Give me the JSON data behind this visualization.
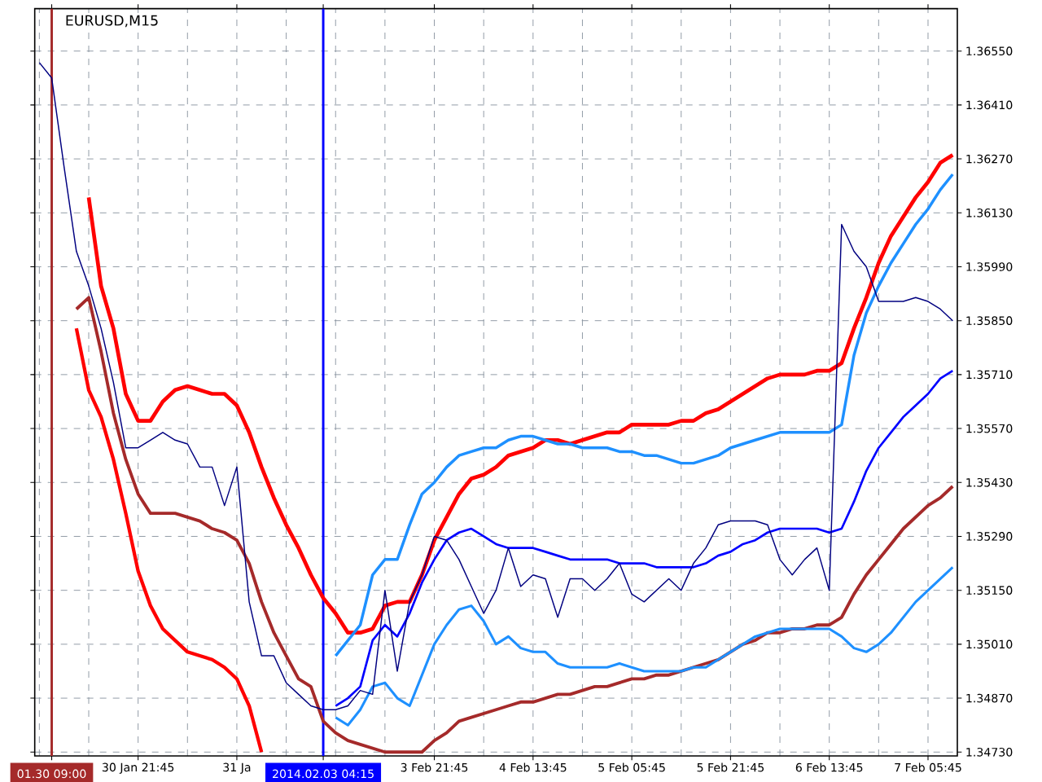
{
  "chart_data": {
    "type": "line",
    "title": "EURUSD,M15",
    "categories": [
      null,
      "01.30 09:00",
      null,
      null,
      null,
      null,
      null,
      null,
      "30 Jan 21:45",
      null,
      null,
      null,
      null,
      null,
      null,
      null,
      "31 Ja",
      null,
      null,
      null,
      null,
      null,
      null,
      "2014.02.03 04:15",
      null,
      null,
      null,
      null,
      null,
      null,
      null,
      null,
      "3 Feb 21:45",
      null,
      null,
      null,
      null,
      null,
      null,
      null,
      "4 Feb 13:45",
      null,
      null,
      null,
      null,
      null,
      null,
      null,
      "5 Feb 05:45",
      null,
      null,
      null,
      null,
      null,
      null,
      null,
      "5 Feb 21:45",
      null,
      null,
      null,
      null,
      null,
      null,
      null,
      "6 Feb 13:45",
      null,
      null,
      null,
      null,
      null,
      null,
      null,
      "7 Feb 05:45",
      null,
      null
    ],
    "series": [
      {
        "color": "#ff0000",
        "values": [
          null,
          null,
          null,
          null,
          1.3617,
          1.3594,
          1.3583,
          1.3566,
          1.3559,
          1.3559,
          1.3564,
          1.3567,
          1.3568,
          1.3567,
          1.3566,
          1.3566,
          1.3563,
          1.3556,
          1.3547,
          1.3539,
          1.3532,
          1.3526,
          1.3519,
          1.3513,
          1.3509,
          1.3504,
          1.3504,
          1.3505,
          1.3511,
          1.3512,
          1.3512,
          1.3519,
          1.3528,
          1.3534,
          1.354,
          1.3544,
          1.3545,
          1.3547,
          1.355,
          1.3551,
          1.3552,
          1.3554,
          1.3554,
          1.3553,
          1.3554,
          1.3555,
          1.3556,
          1.3556,
          1.3558,
          1.3558,
          1.3558,
          1.3558,
          1.3559,
          1.3559,
          1.3561,
          1.3562,
          1.3564,
          1.3566,
          1.3568,
          1.357,
          1.3571,
          1.3571,
          1.3571,
          1.3572,
          1.3572,
          1.3574,
          1.3583,
          1.3591,
          1.36,
          1.3607,
          1.3612,
          1.3617,
          1.3621,
          1.3626,
          1.3628
        ]
      },
      {
        "color": "#ff0000",
        "values": [
          null,
          null,
          null,
          1.3583,
          1.3567,
          1.356,
          1.3549,
          1.3535,
          1.352,
          1.3511,
          1.3505,
          1.3502,
          1.3499,
          1.3498,
          1.3497,
          1.3495,
          1.3492,
          1.3485,
          1.3473,
          null,
          null,
          null,
          null,
          null,
          null,
          null,
          null,
          null,
          null,
          null,
          null,
          null,
          null,
          null,
          null,
          null,
          null,
          null,
          null,
          null,
          null,
          null,
          null,
          null,
          null,
          null,
          null,
          null,
          null,
          null,
          null,
          null,
          null,
          null,
          null,
          null,
          null,
          null,
          null,
          null,
          null,
          null,
          null,
          null,
          null,
          null,
          null,
          null,
          null,
          null,
          null,
          null,
          null,
          null,
          null
        ]
      },
      {
        "color": "#a52a2a",
        "values": [
          null,
          null,
          null,
          1.3588,
          1.3591,
          1.3577,
          1.3561,
          1.3549,
          1.354,
          1.3535,
          1.3535,
          1.3535,
          1.3534,
          1.3533,
          1.3531,
          1.353,
          1.3528,
          1.3522,
          1.3512,
          1.3504,
          1.3498,
          1.3492,
          1.349,
          1.3481,
          1.3478,
          1.3476,
          1.3475,
          1.3474,
          1.3473,
          1.3473,
          1.3473,
          1.3473,
          1.3476,
          1.3478,
          1.3481,
          1.3482,
          1.3483,
          1.3484,
          1.3485,
          1.3486,
          1.3486,
          1.3487,
          1.3488,
          1.3488,
          1.3489,
          1.349,
          1.349,
          1.3491,
          1.3492,
          1.3492,
          1.3493,
          1.3493,
          1.3494,
          1.3495,
          1.3496,
          1.3497,
          1.3499,
          1.3501,
          1.3502,
          1.3504,
          1.3504,
          1.3505,
          1.3505,
          1.3506,
          1.3506,
          1.3508,
          1.3514,
          1.3519,
          1.3523,
          1.3527,
          1.3531,
          1.3534,
          1.3537,
          1.3539,
          1.3542
        ]
      },
      {
        "color": "#1e90ff",
        "values": [
          null,
          null,
          null,
          null,
          null,
          null,
          null,
          null,
          null,
          null,
          null,
          null,
          null,
          null,
          null,
          null,
          null,
          null,
          null,
          null,
          null,
          null,
          null,
          null,
          1.3498,
          1.3502,
          1.3506,
          1.3519,
          1.3523,
          1.3523,
          1.3532,
          1.354,
          1.3543,
          1.3547,
          1.355,
          1.3551,
          1.3552,
          1.3552,
          1.3554,
          1.3555,
          1.3555,
          1.3554,
          1.3553,
          1.3553,
          1.3552,
          1.3552,
          1.3552,
          1.3551,
          1.3551,
          1.355,
          1.355,
          1.3549,
          1.3548,
          1.3548,
          1.3549,
          1.355,
          1.3552,
          1.3553,
          1.3554,
          1.3555,
          1.3556,
          1.3556,
          1.3556,
          1.3556,
          1.3556,
          1.3558,
          1.3576,
          1.3587,
          1.3594,
          1.36,
          1.3605,
          1.361,
          1.3614,
          1.3619,
          1.3623
        ]
      },
      {
        "color": "#1e90ff",
        "values": [
          null,
          null,
          null,
          null,
          null,
          null,
          null,
          null,
          null,
          null,
          null,
          null,
          null,
          null,
          null,
          null,
          null,
          null,
          null,
          null,
          null,
          null,
          null,
          null,
          1.3482,
          1.348,
          1.3484,
          1.349,
          1.3491,
          1.3487,
          1.3485,
          1.3493,
          1.3501,
          1.3506,
          1.351,
          1.3511,
          1.3507,
          1.3501,
          1.3503,
          1.35,
          1.3499,
          1.3499,
          1.3496,
          1.3495,
          1.3495,
          1.3495,
          1.3495,
          1.3496,
          1.3495,
          1.3494,
          1.3494,
          1.3494,
          1.3494,
          1.3495,
          1.3495,
          1.3497,
          1.3499,
          1.3501,
          1.3503,
          1.3504,
          1.3505,
          1.3505,
          1.3505,
          1.3505,
          1.3505,
          1.3503,
          1.35,
          1.3499,
          1.3501,
          1.3504,
          1.3508,
          1.3512,
          1.3515,
          1.3518,
          1.3521
        ]
      },
      {
        "color": "#0000ff",
        "values": [
          null,
          null,
          null,
          null,
          null,
          null,
          null,
          null,
          null,
          null,
          null,
          null,
          null,
          null,
          null,
          null,
          null,
          null,
          null,
          null,
          null,
          null,
          null,
          null,
          1.3485,
          1.3487,
          1.349,
          1.3502,
          1.3506,
          1.3503,
          1.3509,
          1.3517,
          1.3523,
          1.3528,
          1.353,
          1.3531,
          1.3529,
          1.3527,
          1.3526,
          1.3526,
          1.3526,
          1.3525,
          1.3524,
          1.3523,
          1.3523,
          1.3523,
          1.3523,
          1.3522,
          1.3522,
          1.3522,
          1.3521,
          1.3521,
          1.3521,
          1.3521,
          1.3522,
          1.3524,
          1.3525,
          1.3527,
          1.3528,
          1.353,
          1.3531,
          1.3531,
          1.3531,
          1.3531,
          1.353,
          1.3531,
          1.3538,
          1.3546,
          1.3552,
          1.3556,
          1.356,
          1.3563,
          1.3566,
          1.357,
          1.3572
        ]
      },
      {
        "color": "#000080",
        "values": [
          1.3652,
          1.3648,
          1.3625,
          1.3603,
          1.3594,
          1.3583,
          1.3569,
          1.3552,
          1.3552,
          1.3554,
          1.3556,
          1.3554,
          1.3553,
          1.3547,
          1.3547,
          1.3537,
          1.3547,
          1.3512,
          1.3498,
          1.3498,
          1.3491,
          1.3488,
          1.3485,
          1.3484,
          1.3484,
          1.3485,
          1.3489,
          1.3488,
          1.3515,
          1.3494,
          1.3512,
          1.3519,
          1.3529,
          1.3528,
          1.3523,
          1.3516,
          1.3509,
          1.3515,
          1.3526,
          1.3516,
          1.3519,
          1.3518,
          1.3508,
          1.3518,
          1.3518,
          1.3515,
          1.3518,
          1.3522,
          1.3514,
          1.3512,
          1.3515,
          1.3518,
          1.3515,
          1.3522,
          1.3526,
          1.3532,
          1.3533,
          1.3533,
          1.3533,
          1.3532,
          1.3523,
          1.3519,
          1.3523,
          1.3526,
          1.3515,
          1.361,
          1.3603,
          1.3599,
          1.359,
          1.359,
          1.359,
          1.3591,
          1.359,
          1.3588,
          1.3585
        ]
      }
    ],
    "ylim": [
      1.3472,
      1.3666
    ],
    "yticks": [
      {
        "value": 1.3655,
        "label": "1.36550"
      },
      {
        "value": 1.3641,
        "label": "1.36410"
      },
      {
        "value": 1.3627,
        "label": "1.36270"
      },
      {
        "value": 1.3613,
        "label": "1.36130"
      },
      {
        "value": 1.3599,
        "label": "1.35990"
      },
      {
        "value": 1.3585,
        "label": "1.35850"
      },
      {
        "value": 1.3571,
        "label": "1.35710"
      },
      {
        "value": 1.3557,
        "label": "1.35570"
      },
      {
        "value": 1.3543,
        "label": "1.35430"
      },
      {
        "value": 1.3529,
        "label": "1.35290"
      },
      {
        "value": 1.3515,
        "label": "1.35150"
      },
      {
        "value": 1.3501,
        "label": "1.35010"
      },
      {
        "value": 1.3487,
        "label": "1.34870"
      },
      {
        "value": 1.3473,
        "label": "1.34730"
      }
    ],
    "ref_lines": [
      {
        "axis": "x",
        "value": "01.30 09:00",
        "color": "#a52a2a"
      },
      {
        "axis": "x",
        "value": "2014.02.03 04:15",
        "color": "#0000ff"
      }
    ],
    "grid": true,
    "marker": "none",
    "line_style": "solid"
  }
}
